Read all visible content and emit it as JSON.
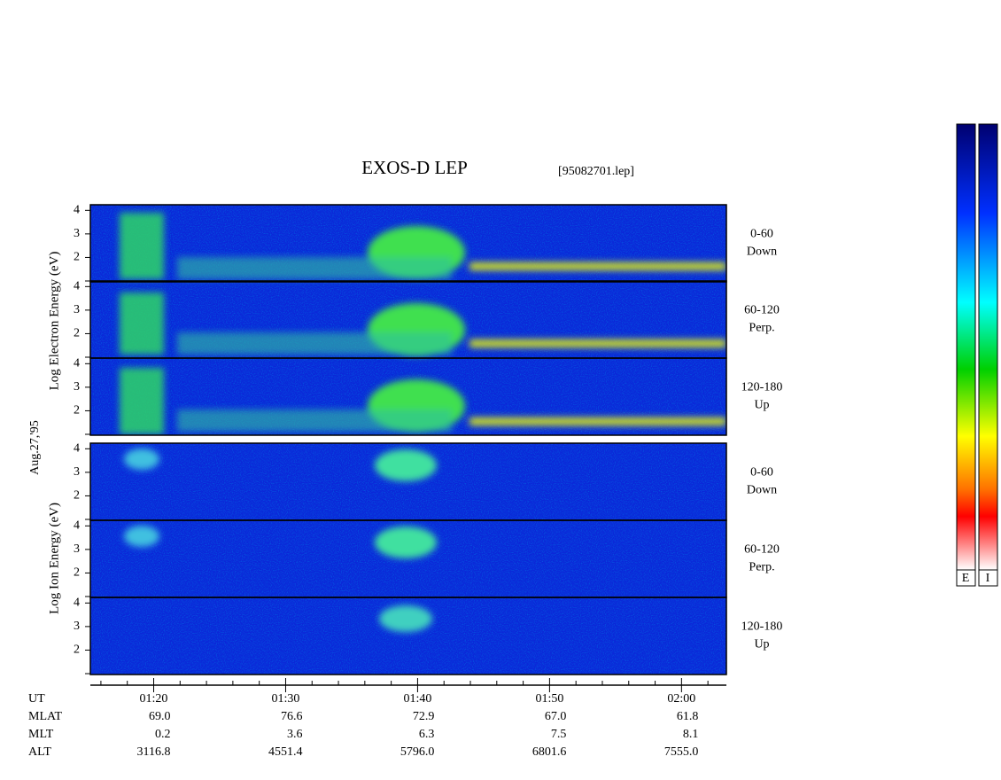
{
  "title": "EXOS-D LEP",
  "file": "[95082701.lep]",
  "date": "Aug.27,'95",
  "electron_axis_label": "Log  Electron  Energy  (eV)",
  "ion_axis_label": "Log  Ion  Energy  (eV)",
  "panels": [
    {
      "angle": "0-60",
      "direction": "Down"
    },
    {
      "angle": "60-120",
      "direction": "Perp."
    },
    {
      "angle": "120-180",
      "direction": "Up"
    },
    {
      "angle": "0-60",
      "direction": "Down"
    },
    {
      "angle": "60-120",
      "direction": "Perp."
    },
    {
      "angle": "120-180",
      "direction": "Up"
    }
  ],
  "ylim": [
    1,
    4.2
  ],
  "yticks": [
    {
      "value": 1,
      "label": ""
    },
    2,
    3,
    4
  ],
  "xlim": [
    15.2,
    63.4
  ],
  "xticks": [
    {
      "value": 20,
      "label": "01:20"
    },
    {
      "value": 30,
      "label": "01:30"
    },
    {
      "value": 40,
      "label": "01:40"
    },
    {
      "value": 50,
      "label": "01:50"
    },
    {
      "value": 60,
      "label": "02:00"
    }
  ],
  "xminor": [
    16,
    18,
    22,
    24,
    26,
    28,
    32,
    34,
    36,
    38,
    42,
    44,
    46,
    48,
    52,
    54,
    56,
    58,
    62
  ],
  "ephemeris": {
    "labels": [
      "UT",
      "MLAT",
      "MLT",
      "ALT"
    ],
    "rows": [
      [
        "69.0",
        "76.6",
        "72.9",
        "67.0",
        "61.8"
      ],
      [
        "0.2",
        "3.6",
        "6.3",
        "7.5",
        "8.1"
      ],
      [
        "3116.8",
        "4551.4",
        "5796.0",
        "6801.6",
        "7555.0"
      ]
    ]
  },
  "colorbar_labels": [
    "E",
    "I"
  ]
}
